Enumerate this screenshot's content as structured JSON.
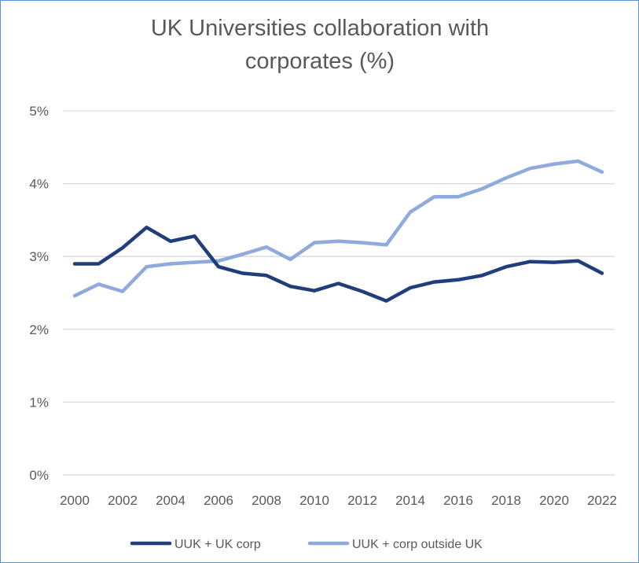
{
  "chart_data": {
    "type": "line",
    "title_lines": [
      "UK Universities collaboration with",
      "corporates (%)"
    ],
    "x": [
      2000,
      2001,
      2002,
      2003,
      2004,
      2005,
      2006,
      2007,
      2008,
      2009,
      2010,
      2011,
      2012,
      2013,
      2014,
      2015,
      2016,
      2017,
      2018,
      2019,
      2020,
      2021,
      2022
    ],
    "x_tick_labels": [
      "2000",
      "2002",
      "2004",
      "2006",
      "2008",
      "2010",
      "2012",
      "2014",
      "2016",
      "2018",
      "2020",
      "2022"
    ],
    "y_tick_labels": [
      "0%",
      "1%",
      "2%",
      "3%",
      "4%",
      "5%"
    ],
    "ylim": [
      0,
      5
    ],
    "grid": true,
    "legend_position": "bottom",
    "series": [
      {
        "name": "UUK + UK corp",
        "color": "#203f7a",
        "values": [
          2.9,
          2.9,
          3.12,
          3.4,
          3.21,
          3.28,
          2.86,
          2.77,
          2.74,
          2.59,
          2.53,
          2.63,
          2.52,
          2.39,
          2.57,
          2.65,
          2.68,
          2.74,
          2.86,
          2.93,
          2.92,
          2.94,
          2.77
        ]
      },
      {
        "name": "UUK + corp outside UK",
        "color": "#8faadc",
        "values": [
          2.46,
          2.62,
          2.52,
          2.86,
          2.9,
          2.92,
          2.94,
          3.03,
          3.13,
          2.96,
          3.19,
          3.21,
          3.19,
          3.16,
          3.61,
          3.82,
          3.82,
          3.93,
          4.08,
          4.21,
          4.27,
          4.31,
          4.16
        ]
      }
    ]
  }
}
